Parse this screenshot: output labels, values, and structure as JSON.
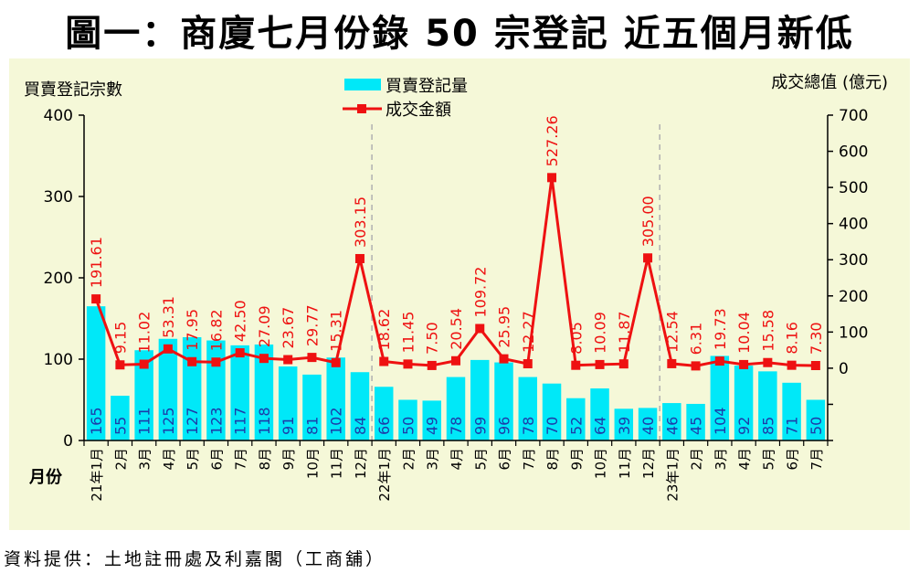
{
  "title": "圖一：商廈七月份錄 50 宗登記  近五個月新低",
  "source": "資料提供：土地註冊處及利嘉閣（工商舖）",
  "colors": {
    "bar": "#00e8f8",
    "line": "#ee1111",
    "background": "#f5f8d8",
    "bar_label": "#1d3ba8",
    "line_label": "#ee1111"
  },
  "chart_data": {
    "type": "bar+line",
    "ylabel_left": "買賣登記宗數",
    "ylabel_right": "成交總值 (億元)",
    "xlabel": "月份",
    "ylim_left": [
      0,
      400
    ],
    "yticks_left": [
      "0",
      "100",
      "200",
      "300",
      "400"
    ],
    "ylim_right": [
      -200,
      700
    ],
    "yticks_right": [
      "0",
      "100",
      "200",
      "300",
      "400",
      "500",
      "600",
      "700"
    ],
    "categories": [
      "21年1月",
      "2月",
      "3月",
      "4月",
      "5月",
      "6月",
      "7月",
      "8月",
      "9月",
      "10月",
      "11月",
      "12月",
      "22年1月",
      "2月",
      "3月",
      "4月",
      "5月",
      "6月",
      "7月",
      "8月",
      "9月",
      "10月",
      "11月",
      "12月",
      "23年1月",
      "2月",
      "3月",
      "4月",
      "5月",
      "6月",
      "7月"
    ],
    "series": [
      {
        "name": "買賣登記量",
        "type": "bar",
        "values": [
          165,
          55,
          111,
          125,
          127,
          123,
          117,
          118,
          91,
          81,
          102,
          84,
          66,
          50,
          49,
          78,
          99,
          96,
          78,
          70,
          52,
          64,
          39,
          40,
          46,
          45,
          104,
          92,
          85,
          71,
          50
        ],
        "labels": [
          "165",
          "55",
          "111",
          "125",
          "127",
          "123",
          "117",
          "118",
          "91",
          "81",
          "102",
          "84",
          "66",
          "50",
          "49",
          "78",
          "99",
          "96",
          "78",
          "70",
          "52",
          "64",
          "39",
          "40",
          "46",
          "45",
          "104",
          "92",
          "85",
          "71",
          "50"
        ]
      },
      {
        "name": "成交金額",
        "type": "line",
        "values": [
          191.61,
          9.15,
          11.02,
          53.31,
          17.95,
          16.82,
          42.5,
          27.09,
          23.67,
          29.77,
          15.31,
          303.15,
          18.62,
          11.45,
          7.5,
          20.54,
          109.72,
          25.95,
          12.27,
          527.26,
          8.05,
          10.09,
          11.87,
          305.0,
          12.54,
          6.31,
          19.73,
          10.04,
          15.58,
          8.16,
          7.3
        ],
        "labels": [
          "191.61",
          "9.15",
          "11.02",
          "53.31",
          "17.95",
          "16.82",
          "42.50",
          "27.09",
          "23.67",
          "29.77",
          "15.31",
          "303.15",
          "18.62",
          "11.45",
          "7.50",
          "20.54",
          "109.72",
          "25.95",
          "12.27",
          "527.26",
          "8.05",
          "10.09",
          "11.87",
          "305.00",
          "12.54",
          "6.31",
          "19.73",
          "10.04",
          "15.58",
          "8.16",
          "7.30"
        ]
      }
    ],
    "legend": [
      "買賣登記量",
      "成交金額"
    ],
    "year_dividers_after": [
      11,
      23
    ]
  }
}
